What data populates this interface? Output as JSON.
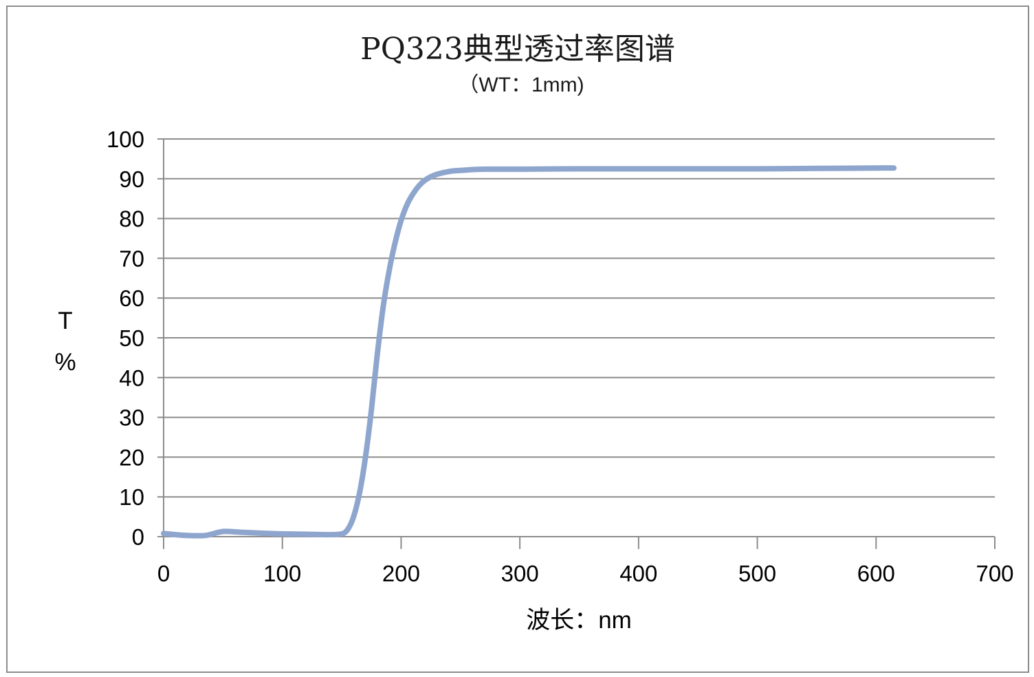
{
  "chart_data": {
    "type": "line",
    "title": "PQ323典型透过率图谱",
    "subtitle": "（WT：1mm)",
    "xlabel": "波长：nm",
    "ylabel": [
      "T",
      "%"
    ],
    "xlim": [
      0,
      700
    ],
    "ylim": [
      0,
      100
    ],
    "x_ticks": [
      0,
      100,
      200,
      300,
      400,
      500,
      600,
      700
    ],
    "y_ticks": [
      0,
      10,
      20,
      30,
      40,
      50,
      60,
      70,
      80,
      90,
      100
    ],
    "grid": "horizontal",
    "legend": "none",
    "series": [
      {
        "color": "#8EA6CE",
        "x": [
          0,
          10,
          20,
          35,
          45,
          50,
          55,
          65,
          80,
          100,
          120,
          140,
          150,
          155,
          160,
          165,
          170,
          175,
          180,
          185,
          190,
          195,
          200,
          205,
          210,
          215,
          220,
          225,
          230,
          235,
          240,
          245,
          250,
          260,
          270,
          280,
          300,
          350,
          400,
          450,
          500,
          550,
          600,
          615
        ],
        "y": [
          0.8,
          0.5,
          0.3,
          0.3,
          1.0,
          1.3,
          1.3,
          1.1,
          0.9,
          0.7,
          0.6,
          0.5,
          0.7,
          1.8,
          5,
          11,
          20,
          32,
          46,
          58,
          67,
          74,
          79.5,
          83.5,
          86.2,
          88.2,
          89.6,
          90.5,
          91.1,
          91.5,
          91.8,
          92.0,
          92.1,
          92.3,
          92.4,
          92.4,
          92.4,
          92.5,
          92.5,
          92.5,
          92.5,
          92.6,
          92.7,
          92.7
        ]
      }
    ]
  }
}
